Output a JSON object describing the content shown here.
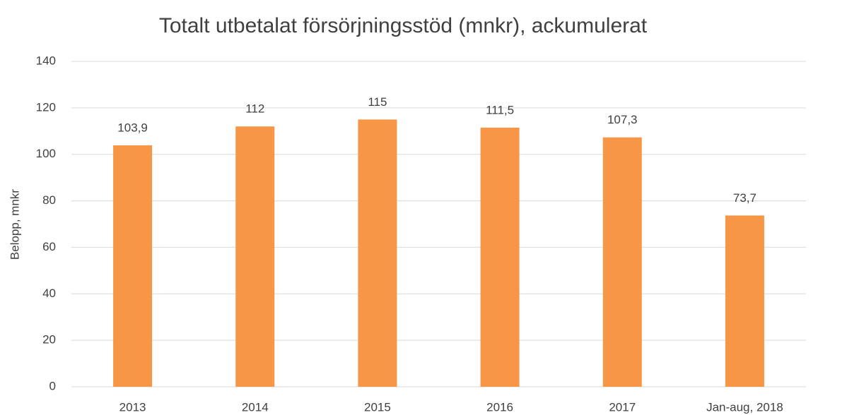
{
  "chart_data": {
    "type": "bar",
    "title": "Totalt utbetalat försörjningsstöd (mnkr), ackumulerat",
    "y_label": "Belopp, mnkr",
    "categories": [
      "2013",
      "2014",
      "2015",
      "2016",
      "2017",
      "Jan-aug, 2018"
    ],
    "values": [
      103.9,
      112,
      115,
      111.5,
      107.3,
      73.7
    ],
    "value_labels": [
      "103,9",
      "112",
      "115",
      "111,5",
      "107,3",
      "73,7"
    ],
    "color": "#f79646",
    "ylim": [
      0,
      140
    ],
    "yticks": [
      0,
      20,
      40,
      60,
      80,
      100,
      120,
      140
    ],
    "grid": true
  }
}
